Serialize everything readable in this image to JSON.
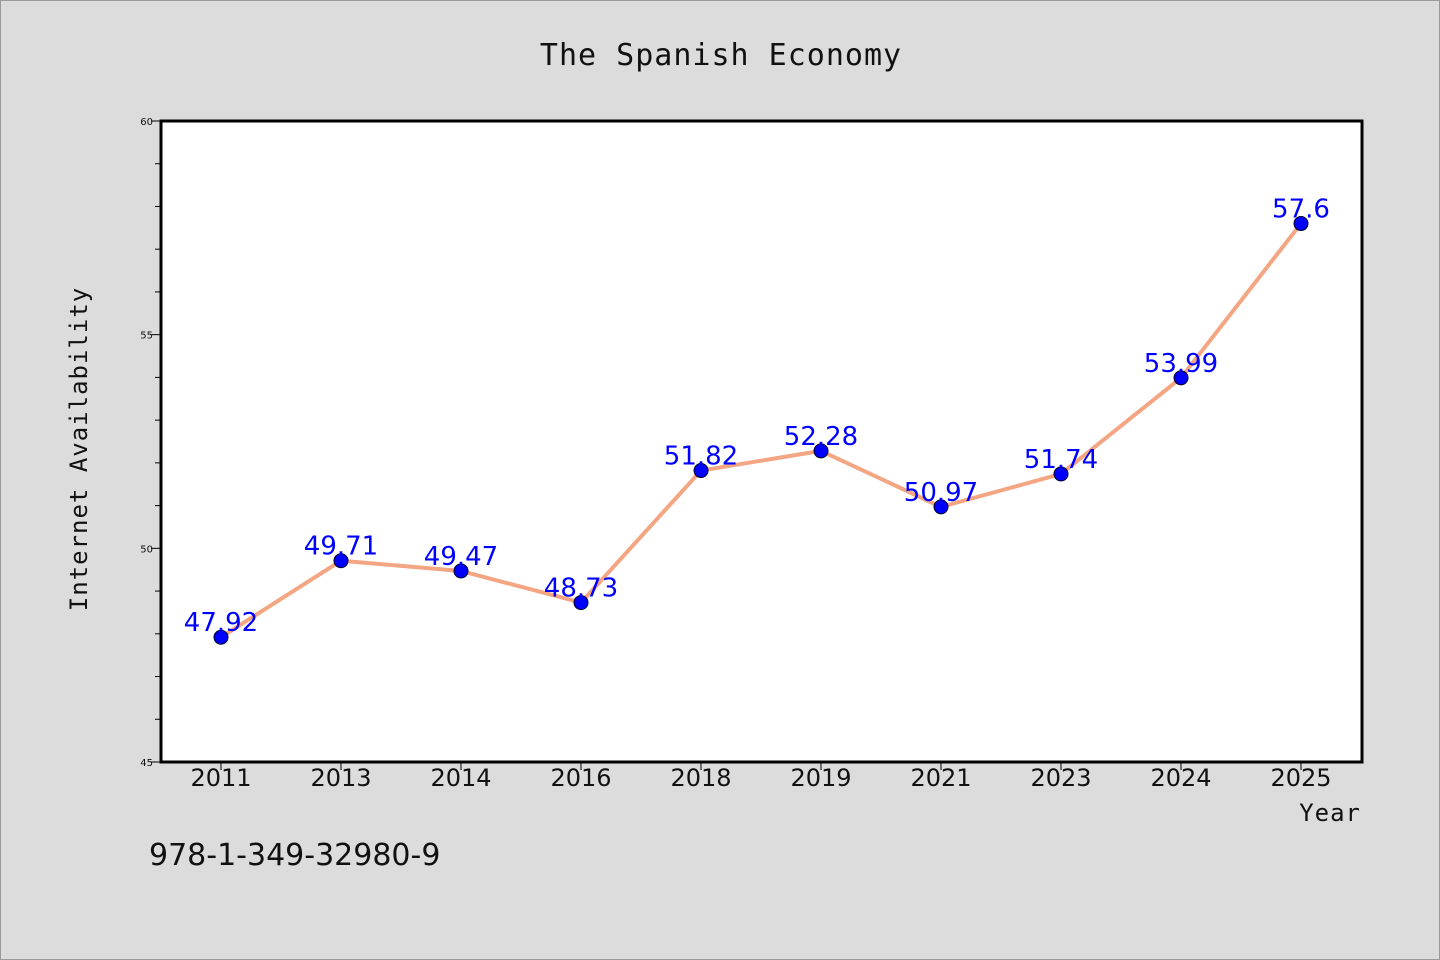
{
  "chart_data": {
    "type": "line",
    "title": "The Spanish Economy",
    "xlabel": "Year",
    "ylabel": "Internet Availability",
    "categories": [
      "2011",
      "2013",
      "2014",
      "2016",
      "2018",
      "2019",
      "2021",
      "2023",
      "2024",
      "2025"
    ],
    "series": [
      {
        "values": [
          47.92,
          49.71,
          49.47,
          48.73,
          51.82,
          52.28,
          50.97,
          51.74,
          53.99,
          57.6
        ],
        "data_labels": [
          "47.92",
          "49.71",
          "49.47",
          "48.73",
          "51.82",
          "52.28",
          "50.97",
          "51.74",
          "53.99",
          "57.6"
        ]
      }
    ],
    "ylim": [
      45,
      60
    ],
    "yticks": [
      "45",
      "50",
      "55",
      "60"
    ],
    "grid": false,
    "legend": "none",
    "colors": {
      "line": "#f4a582",
      "marker": "#0000ff",
      "data_label": "#0000ff",
      "background": "#dcdcdc",
      "plot_area": "#ffffff"
    }
  },
  "footer": {
    "isbn": "978-1-349-32980-9"
  }
}
